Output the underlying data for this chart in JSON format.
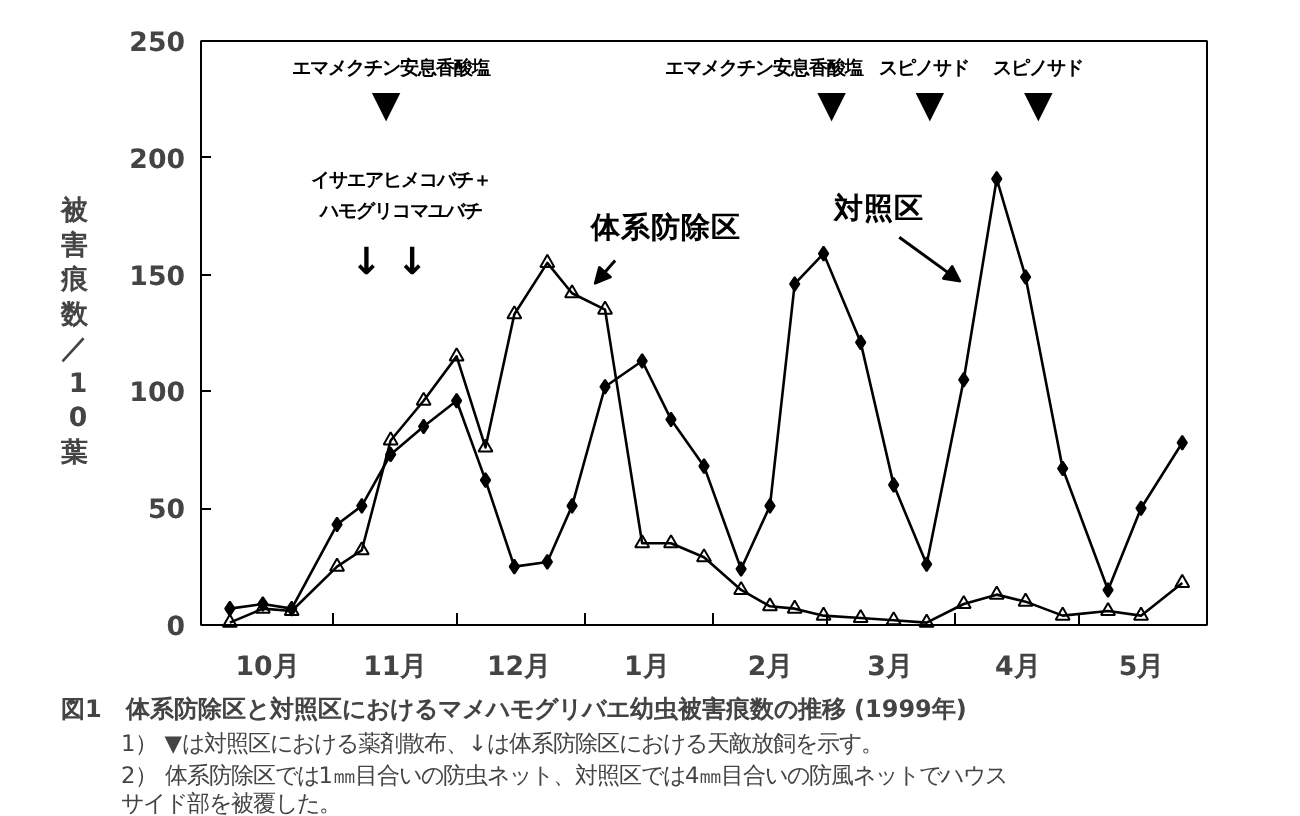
{
  "chart_data": {
    "type": "line",
    "title": "図1　体系防除区と対照区におけるマメハモグリバエ幼虫被害痕数の推移 (1999年)",
    "ylabel": "被害痕数／10葉",
    "xlim": [
      "1998-09-30",
      "1999-06-01"
    ],
    "ylim": [
      0,
      250
    ],
    "yticks": [
      0,
      50,
      100,
      150,
      200,
      250
    ],
    "xticks": [
      {
        "value": "1998-10-16",
        "label": "10月"
      },
      {
        "value": "1998-11-01",
        "label": null
      },
      {
        "value": "1998-11-16",
        "label": "11月"
      },
      {
        "value": "1998-12-01",
        "label": null
      },
      {
        "value": "1998-12-16",
        "label": "12月"
      },
      {
        "value": "1999-01-01",
        "label": null
      },
      {
        "value": "1999-01-16",
        "label": "1月"
      },
      {
        "value": "1999-02-01",
        "label": null
      },
      {
        "value": "1999-02-15",
        "label": "2月"
      },
      {
        "value": "1999-03-01",
        "label": null
      },
      {
        "value": "1999-03-16",
        "label": "3月"
      },
      {
        "value": "1999-04-01",
        "label": null
      },
      {
        "value": "1999-04-16",
        "label": "4月"
      },
      {
        "value": "1999-05-01",
        "label": null
      },
      {
        "value": "1999-05-16",
        "label": "5月"
      }
    ],
    "x": [
      "1998-10-07",
      "1998-10-15",
      "1998-10-22",
      "1998-11-02",
      "1998-11-08",
      "1998-11-15",
      "1998-11-23",
      "1998-12-01",
      "1998-12-08",
      "1998-12-15",
      "1998-12-23",
      "1998-12-29",
      "1999-01-06",
      "1999-01-15",
      "1999-01-22",
      "1999-01-30",
      "1999-02-08",
      "1999-02-15",
      "1999-02-21",
      "1999-02-28",
      "1999-03-09",
      "1999-03-17",
      "1999-03-25",
      "1999-04-03",
      "1999-04-11",
      "1999-04-18",
      "1999-04-27",
      "1999-05-08",
      "1999-05-16",
      "1999-05-26"
    ],
    "series": [
      {
        "name": "体系防除区",
        "color": "#000000",
        "marker": "triangle",
        "values": [
          1,
          7,
          6,
          25,
          32,
          79,
          96,
          115,
          76,
          133,
          155,
          142,
          135,
          35,
          35,
          29,
          15,
          8,
          7,
          4,
          3,
          2,
          1,
          9,
          13,
          10,
          4,
          6,
          4,
          18
        ]
      },
      {
        "name": "対照区",
        "color": "#000000",
        "marker": "diamond",
        "values": [
          7,
          9,
          7,
          43,
          51,
          73,
          85,
          96,
          62,
          25,
          27,
          51,
          102,
          113,
          88,
          68,
          24,
          51,
          146,
          159,
          121,
          60,
          26,
          105,
          191,
          149,
          67,
          15,
          50,
          78
        ]
      }
    ],
    "grid": false,
    "line_style": "solid",
    "annotations": [
      "エマメクチン安息香酸塩",
      "▼",
      "エマメクチン安息香酸塩",
      "▼",
      "スピノサド",
      "▼",
      "スピノサド",
      "▼",
      "イサエアヒメコバチ＋",
      "ハモグリコマユバチ",
      "↓",
      "↓",
      "1） ▼は対照区における薬剤散布、↓は体系防除区における天敵放飼を示す。",
      "2） 体系防除区では1㎜目合いの防虫ネット、対照区では4㎜目合いの防風ネットでハウスサイド部を被覆した。"
    ]
  }
}
